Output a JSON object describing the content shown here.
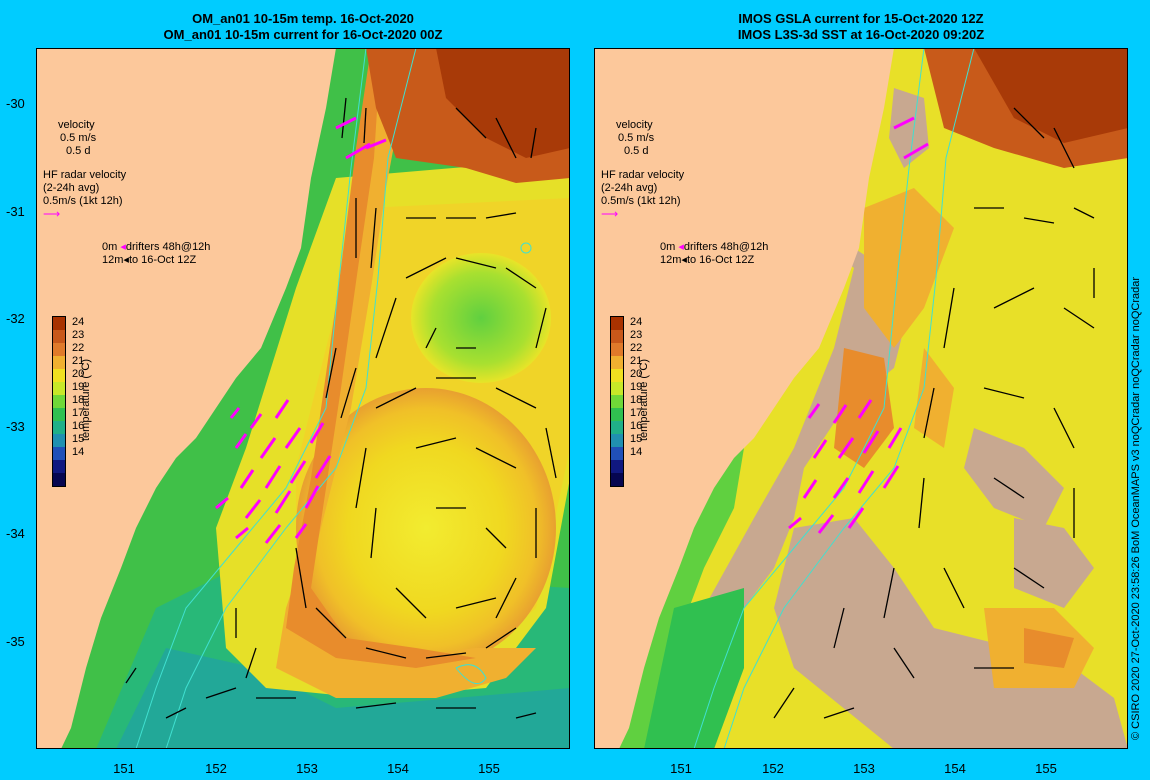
{
  "left_title": {
    "line1": "OM_an01 10-15m temp. 16-Oct-2020",
    "line2": "OM_an01 10-15m current for 16-Oct-2020 00Z"
  },
  "right_title": {
    "line1": "IMOS GSLA current for 15-Oct-2020 12Z",
    "line2": "IMOS L3S-3d SST at 16-Oct-2020 09:20Z"
  },
  "y_ticks": [
    "-30",
    "-31",
    "-32",
    "-33",
    "-34",
    "-35"
  ],
  "x_ticks": [
    "151",
    "152",
    "153",
    "154",
    "155"
  ],
  "legend": {
    "velocity": "velocity",
    "velocity_scale_ms": "0.5 m/s",
    "velocity_scale_d": "0.5 d",
    "hf_title": "HF radar velocity",
    "hf_avg": "(2-24h avg)",
    "hf_scale": "0.5m/s (1kt 12h)",
    "drifters_0m": "0m",
    "drifters_label": "drifters 48h@12h",
    "drifters_12m": "12m",
    "drifters_date": "to 16-Oct 12Z"
  },
  "colorbar": {
    "label": "temperature (°C)",
    "ticks": [
      "24",
      "23",
      "22",
      "21",
      "20",
      "19",
      "18",
      "17",
      "16",
      "15",
      "14"
    ],
    "colors": [
      "#a83200",
      "#c8581a",
      "#e07a2a",
      "#f0b030",
      "#f0e020",
      "#c8e828",
      "#70d838",
      "#30c050",
      "#20b088",
      "#2090b0",
      "#2050b8",
      "#101880",
      "#060650"
    ]
  },
  "credit": "© CSIRO 2020   27-Oct-2020 23:58:26 BoM OceanMAPS v3 noQCradar noQCradar noQCradar",
  "colors": {
    "land": "#fcc89b",
    "background": "#00ccff",
    "hf_arrow": "#ff00ff",
    "cloud": "#c8a890",
    "isobath": "#40e0d0"
  }
}
